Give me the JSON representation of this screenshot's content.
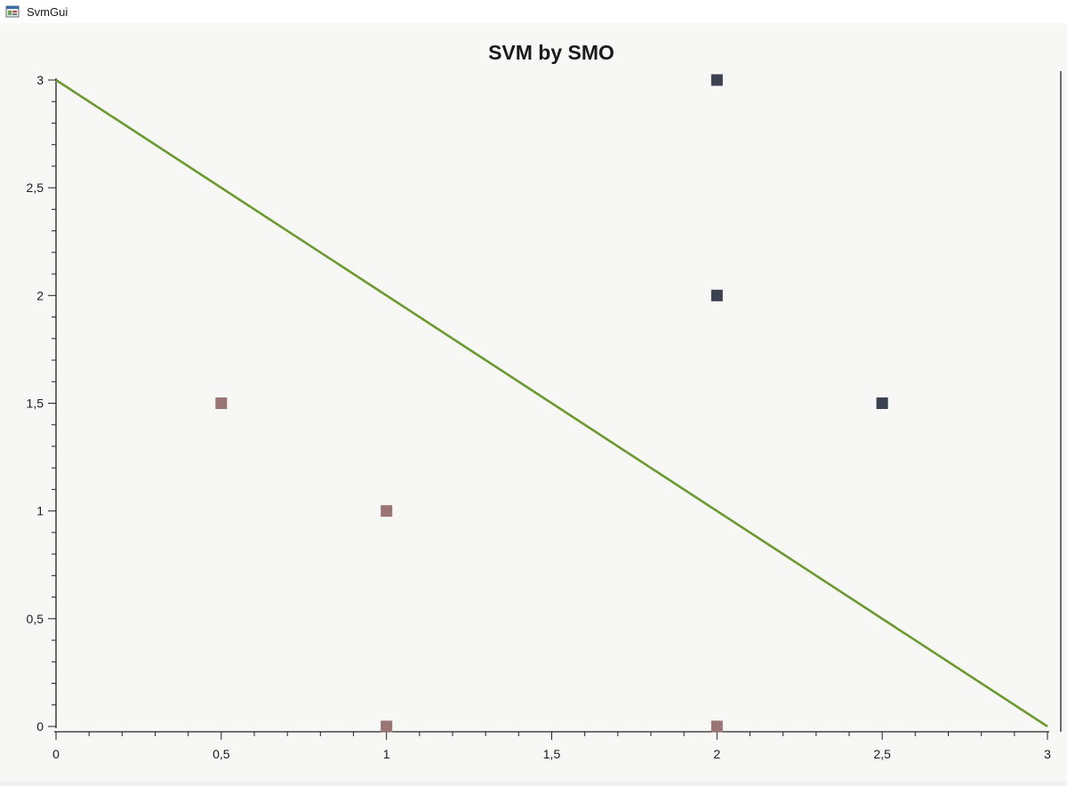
{
  "window": {
    "title": "SvmGui",
    "icon": "app-window-icon"
  },
  "chart_data": {
    "type": "scatter",
    "title": "SVM by SMO",
    "xlabel": "",
    "ylabel": "",
    "xlim": [
      0,
      3
    ],
    "ylim": [
      0,
      3
    ],
    "x_ticks": [
      "0",
      "0,5",
      "1",
      "1,5",
      "2",
      "2,5",
      "3"
    ],
    "y_ticks": [
      "0",
      "0,5",
      "1",
      "1,5",
      "2",
      "2,5",
      "3"
    ],
    "grid": false,
    "series": [
      {
        "color": "#9a7575",
        "marker": "square",
        "points": [
          [
            0.5,
            1.5
          ],
          [
            1,
            1
          ],
          [
            1,
            0
          ],
          [
            2,
            0
          ]
        ]
      },
      {
        "color": "#3d4250",
        "marker": "square",
        "points": [
          [
            2,
            3
          ],
          [
            2,
            2
          ],
          [
            2.5,
            1.5
          ]
        ]
      }
    ],
    "lines": [
      {
        "color": "#6a9a30",
        "points": [
          [
            0,
            3
          ],
          [
            3,
            0
          ]
        ]
      }
    ]
  }
}
